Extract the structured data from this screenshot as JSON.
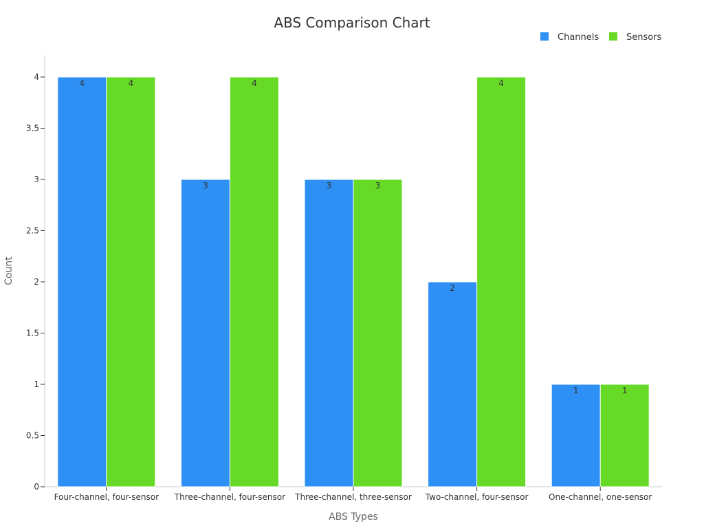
{
  "chart_data": {
    "type": "bar",
    "title": "ABS Comparison Chart",
    "xlabel": "ABS Types",
    "ylabel": "Count",
    "categories": [
      "Four-channel, four-sensor",
      "Three-channel, four-sensor",
      "Three-channel, three-sensor",
      "Two-channel, four-sensor",
      "One-channel, one-sensor"
    ],
    "series": [
      {
        "name": "Channels",
        "values": [
          4,
          3,
          3,
          2,
          1
        ],
        "color": "#2e90f5"
      },
      {
        "name": "Sensors",
        "values": [
          4,
          4,
          3,
          4,
          1
        ],
        "color": "#66da26"
      }
    ],
    "ylim": [
      0,
      4
    ],
    "yticks": [
      "0",
      "0.5",
      "1",
      "1.5",
      "2",
      "2.5",
      "3",
      "3.5",
      "4"
    ],
    "grid": false,
    "legend_position": "top-right",
    "data_labels": true
  }
}
